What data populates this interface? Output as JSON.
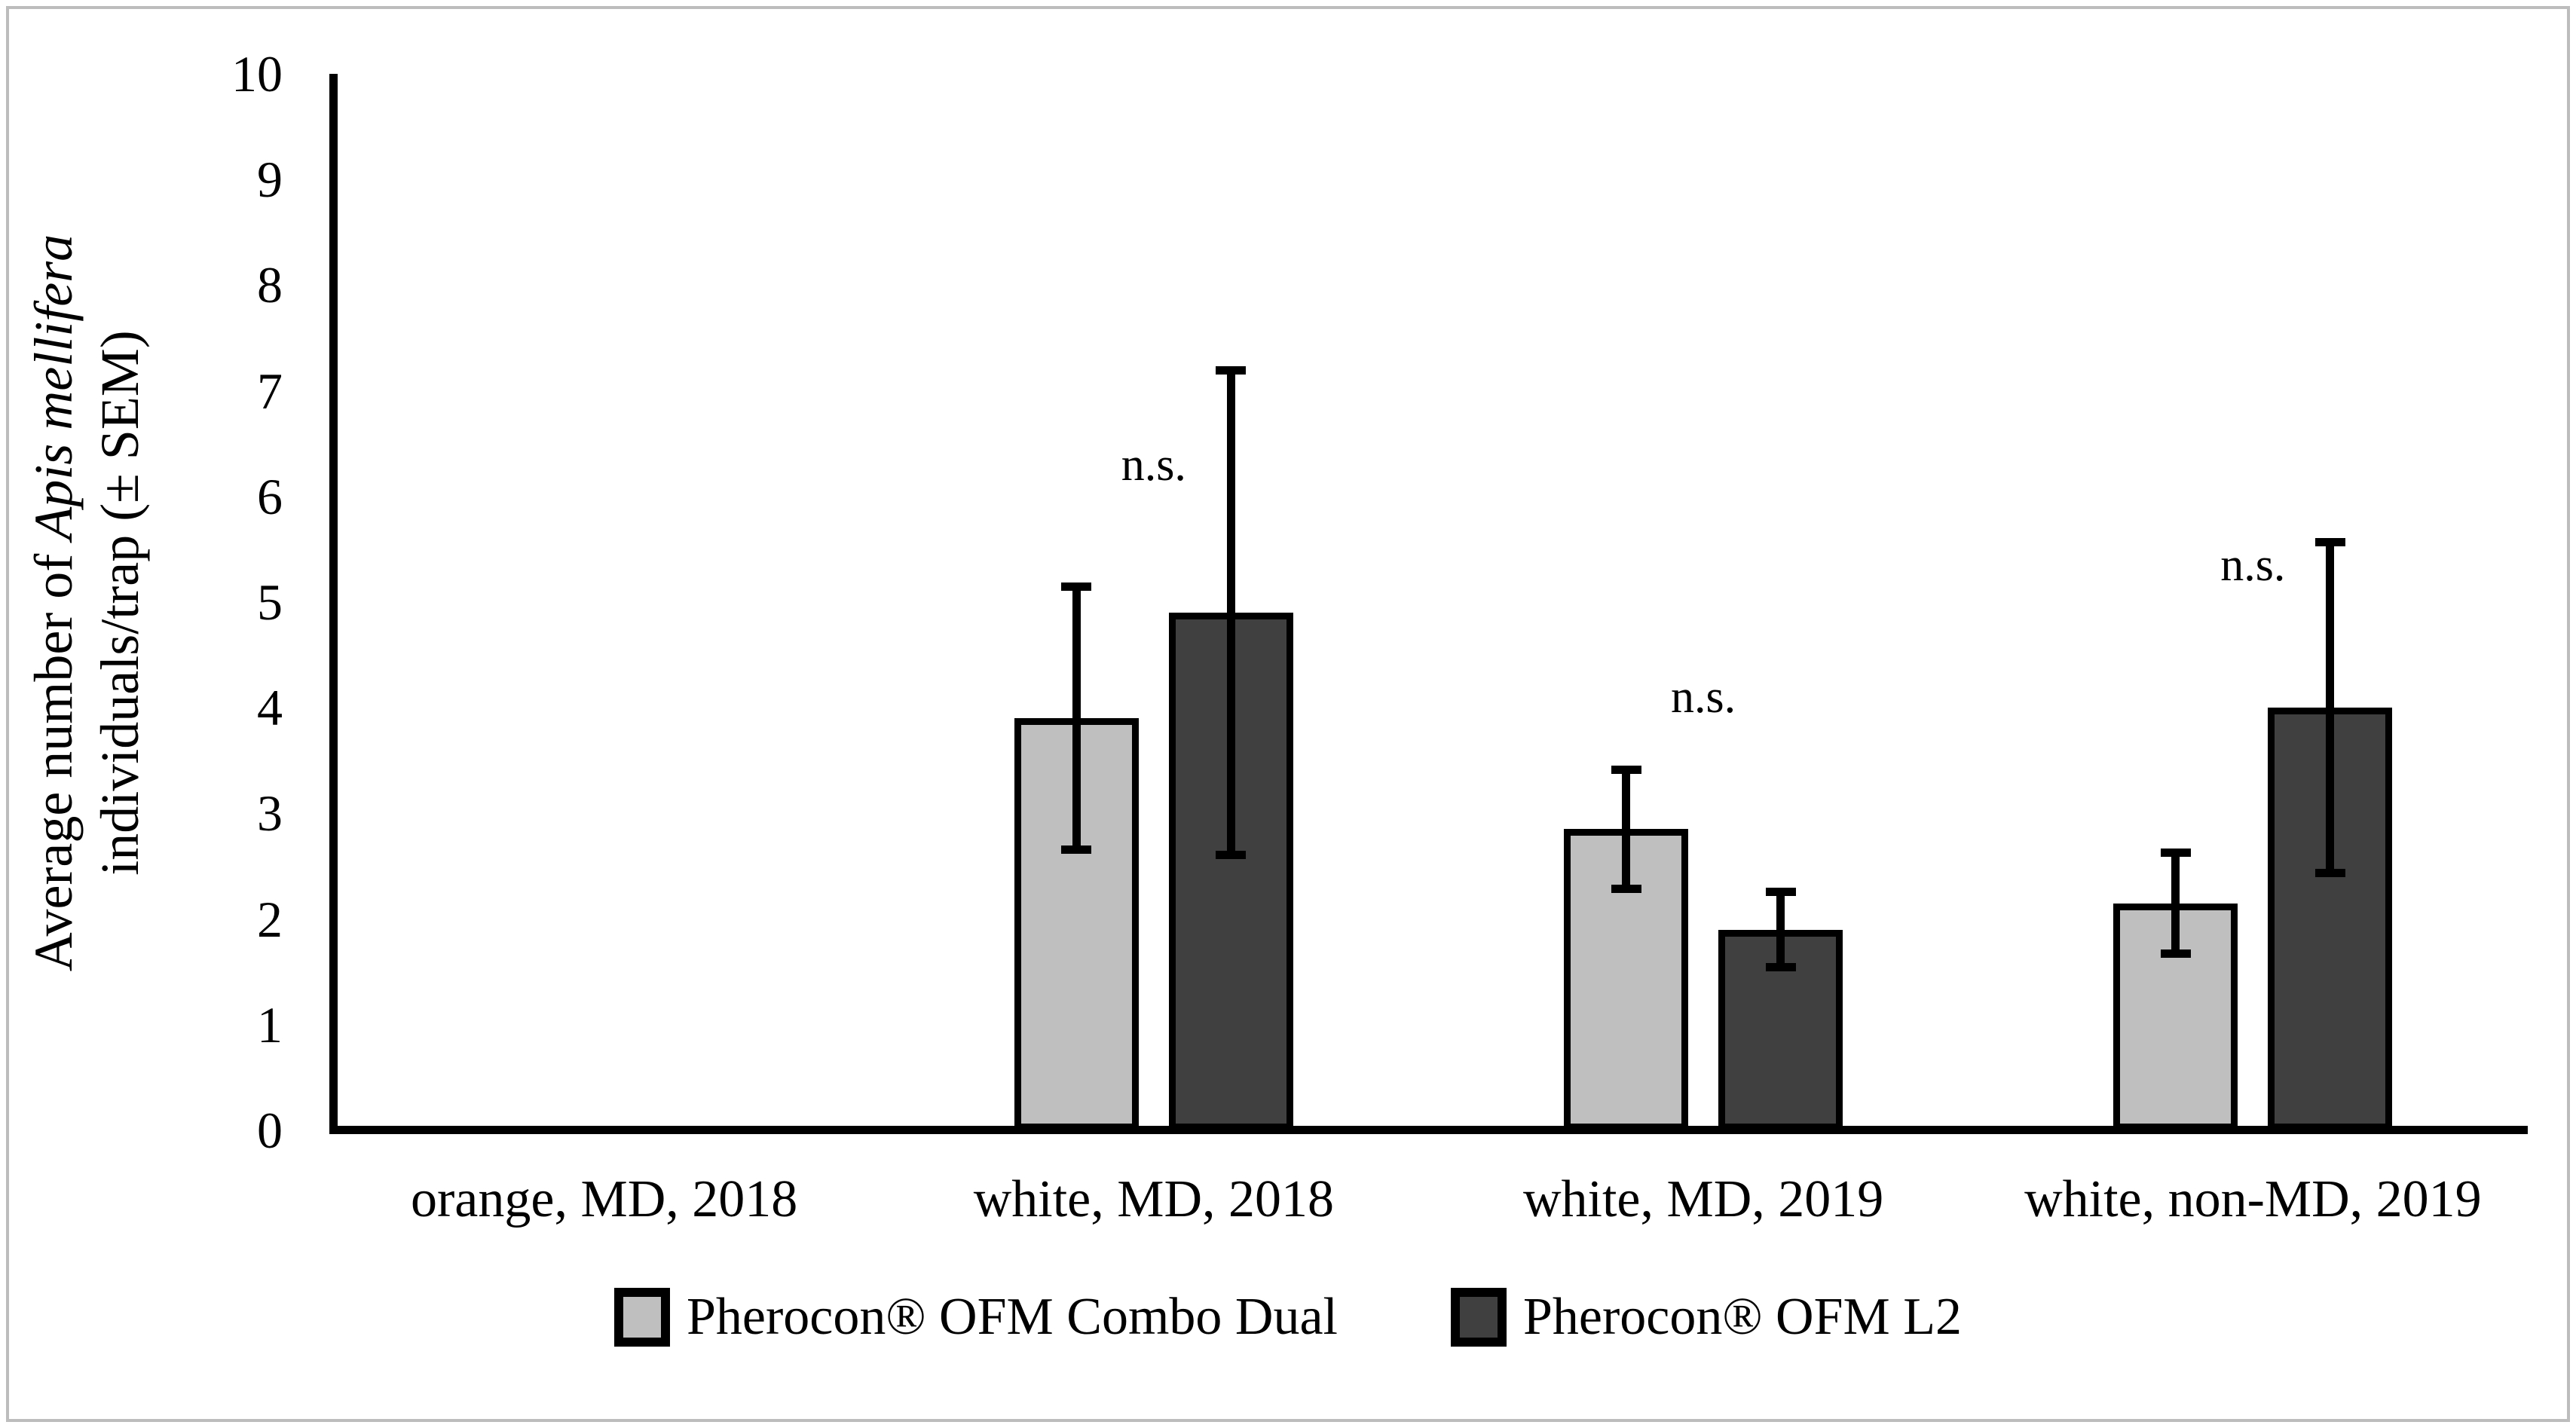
{
  "figure": {
    "y_axis": {
      "title_prefix": "Average number of ",
      "title_italic": "Apis mellifera",
      "title_line2": "individuals/trap (± SEM)"
    },
    "legend": {
      "items": [
        {
          "label": "Pherocon® OFM Combo Dual",
          "color": "#bfbfbf"
        },
        {
          "label": "Pherocon® OFM L2",
          "color": "#404040"
        }
      ]
    }
  },
  "chart_data": {
    "type": "bar",
    "categories": [
      "orange, MD, 2018",
      "white, MD, 2018",
      "white, MD, 2019",
      "white, non-MD, 2019"
    ],
    "series": [
      {
        "name": "Pherocon® OFM Combo Dual",
        "color": "#bfbfbf",
        "values": [
          0,
          3.9,
          2.85,
          2.15
        ],
        "sem": [
          0,
          1.25,
          0.57,
          0.48
        ]
      },
      {
        "name": "Pherocon® OFM L2",
        "color": "#404040",
        "values": [
          0,
          4.9,
          1.9,
          4.0
        ],
        "sem": [
          0,
          2.3,
          0.36,
          1.57
        ]
      }
    ],
    "annotations": [
      {
        "category_index": 1,
        "label": "n.s.",
        "y": 6.3
      },
      {
        "category_index": 2,
        "label": "n.s.",
        "y": 4.1
      },
      {
        "category_index": 3,
        "label": "n.s.",
        "y": 5.35
      }
    ],
    "ylabel": "Average number of Apis mellifera individuals/trap (± SEM)",
    "ylim": [
      0,
      10
    ],
    "yticks": [
      0,
      1,
      2,
      3,
      4,
      5,
      6,
      7,
      8,
      9,
      10
    ],
    "grid": false,
    "legend_position": "bottom",
    "error_bars": "± SEM, symmetric"
  }
}
